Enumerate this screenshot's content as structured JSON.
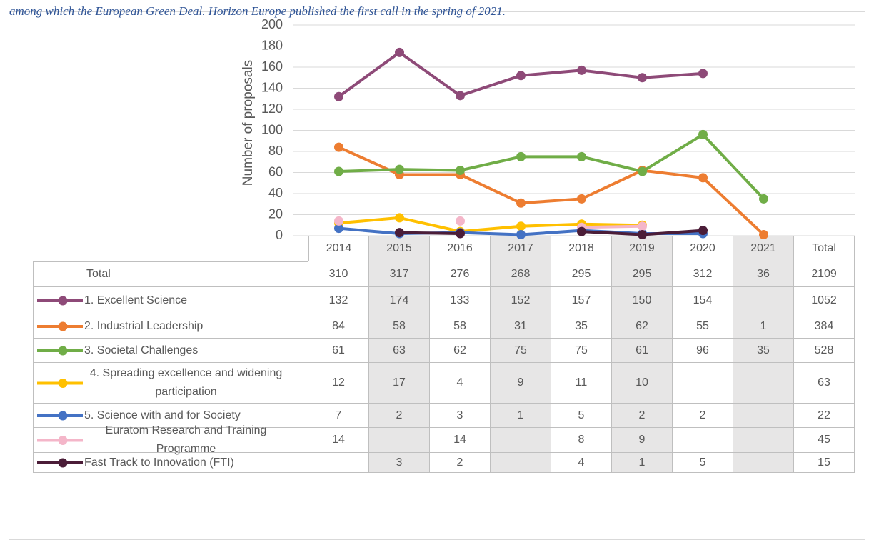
{
  "caption": "among which the European Green Deal. Horizon Europe published the first call in the spring of 2021.",
  "chart_data": {
    "type": "line",
    "y_label": "Number of proposals",
    "categories": [
      "2014",
      "2015",
      "2016",
      "2017",
      "2018",
      "2019",
      "2020",
      "2021"
    ],
    "ylim": [
      0,
      200
    ],
    "yticks": [
      0,
      20,
      40,
      60,
      80,
      100,
      120,
      140,
      160,
      180,
      200
    ],
    "grid": true,
    "total_header": "Total",
    "total_row": {
      "label": "Total",
      "values": [
        310,
        317,
        276,
        268,
        295,
        295,
        312,
        36
      ],
      "total": 2109
    },
    "series": [
      {
        "name": "1. Excellent Science",
        "color": "#8e4a78",
        "values": [
          132,
          174,
          133,
          152,
          157,
          150,
          154,
          null
        ],
        "total": 1052
      },
      {
        "name": "2. Industrial Leadership",
        "color": "#ed7d31",
        "values": [
          84,
          58,
          58,
          31,
          35,
          62,
          55,
          1
        ],
        "total": 384
      },
      {
        "name": "3. Societal Challenges",
        "color": "#70ad47",
        "values": [
          61,
          63,
          62,
          75,
          75,
          61,
          96,
          35
        ],
        "total": 528
      },
      {
        "name": "4. Spreading excellence and widening participation",
        "color": "#ffc000",
        "values": [
          12,
          17,
          4,
          9,
          11,
          10,
          null,
          null
        ],
        "total": 63
      },
      {
        "name": "5. Science with and for Society",
        "color": "#4472c4",
        "values": [
          7,
          2,
          3,
          1,
          5,
          2,
          2,
          null
        ],
        "total": 22
      },
      {
        "name": "Euratom Research and Training Programme",
        "color": "#f4b6c9",
        "values": [
          14,
          null,
          14,
          null,
          8,
          9,
          null,
          null
        ],
        "total": 45
      },
      {
        "name": "Fast Track to Innovation (FTI)",
        "color": "#4b1d38",
        "values": [
          null,
          3,
          2,
          null,
          4,
          1,
          5,
          null
        ],
        "total": 15
      }
    ]
  }
}
